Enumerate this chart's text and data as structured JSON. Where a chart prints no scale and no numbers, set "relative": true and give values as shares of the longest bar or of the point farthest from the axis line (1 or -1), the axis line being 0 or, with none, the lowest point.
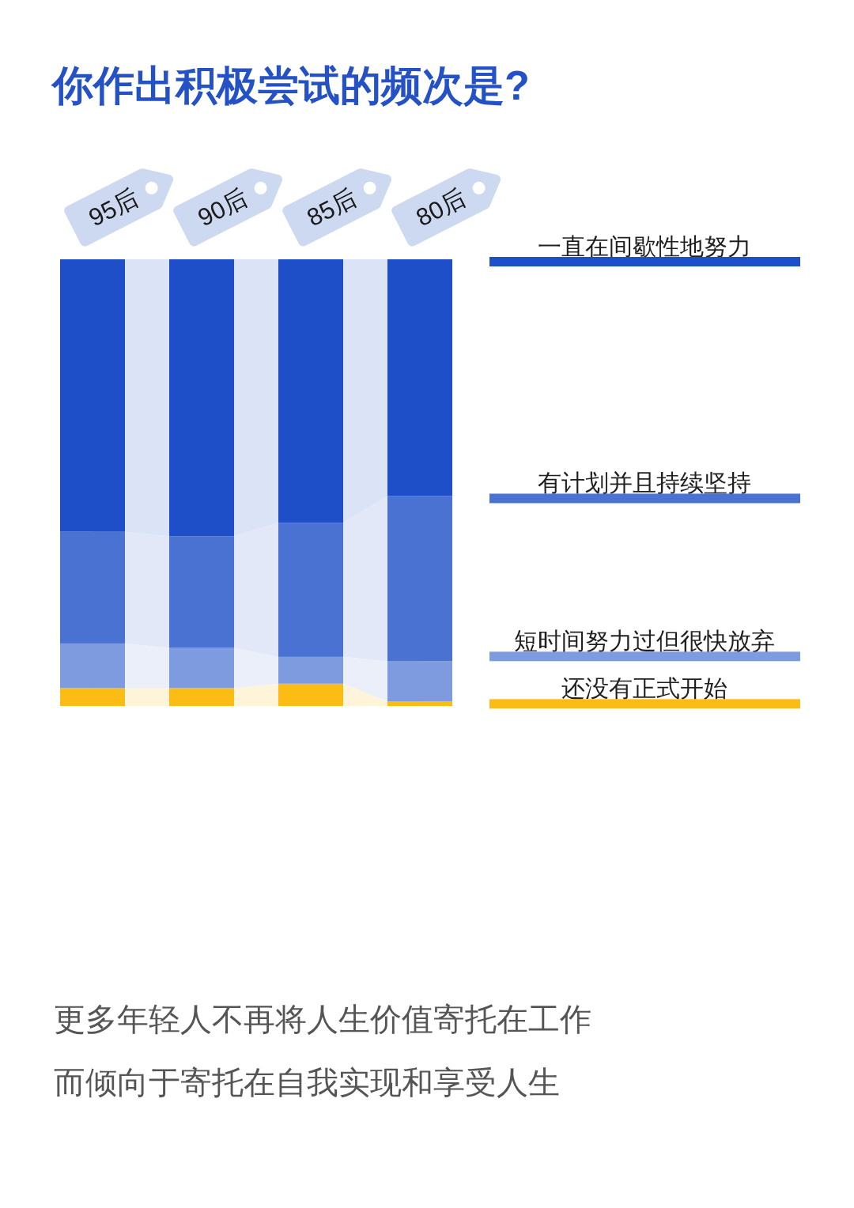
{
  "chart_data": {
    "type": "bar",
    "title": "你作出积极尝试的频次是?",
    "categories": [
      "95后",
      "90后",
      "85后",
      "80后"
    ],
    "stacked": true,
    "relative": true,
    "legend": "right",
    "series": [
      {
        "name": "还没有正式开始",
        "color": "#fbbc13",
        "values": [
          0.04,
          0.04,
          0.05,
          0.01
        ]
      },
      {
        "name": "短时间努力过但很快放弃",
        "color": "#7f9be0",
        "values": [
          0.1,
          0.09,
          0.06,
          0.09
        ]
      },
      {
        "name": "有计划并且持续坚持",
        "color": "#4a72d2",
        "values": [
          0.25,
          0.25,
          0.3,
          0.37
        ]
      },
      {
        "name": "一直在间歇性地努力",
        "color": "#1f4fc8",
        "values": [
          0.61,
          0.62,
          0.59,
          0.53
        ]
      }
    ],
    "annotations": [
      "更多年轻人不再将人生价值寄托在工作",
      "而倾向于寄托在自我实现和享受人生"
    ]
  }
}
